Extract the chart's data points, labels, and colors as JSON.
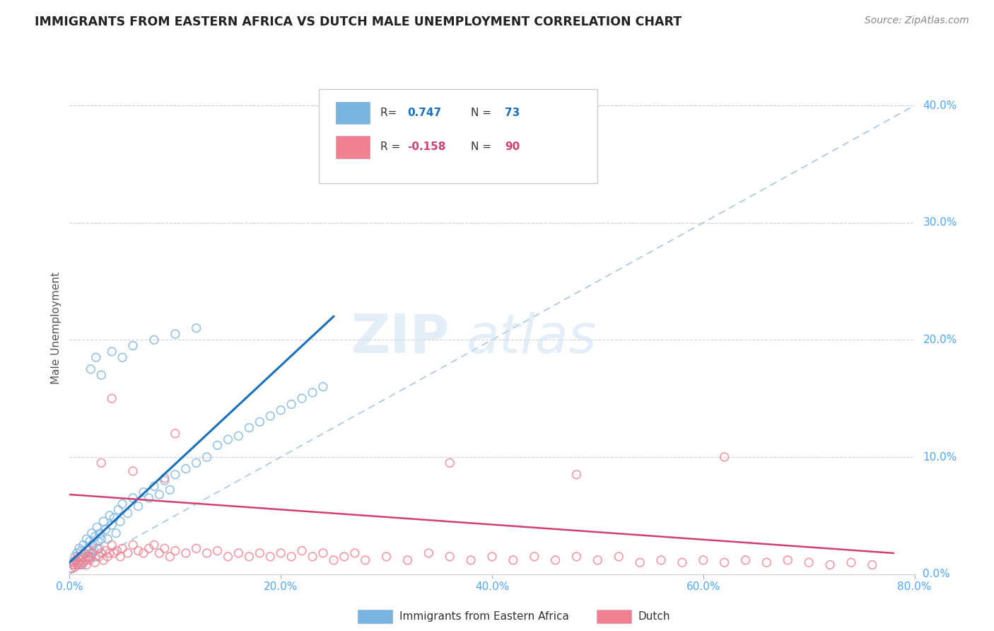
{
  "title": "IMMIGRANTS FROM EASTERN AFRICA VS DUTCH MALE UNEMPLOYMENT CORRELATION CHART",
  "source": "Source: ZipAtlas.com",
  "ylabel": "Male Unemployment",
  "xlim": [
    0,
    0.8
  ],
  "ylim": [
    0.0,
    0.42
  ],
  "yticks": [
    0.0,
    0.1,
    0.2,
    0.3,
    0.4
  ],
  "xticks": [
    0.0,
    0.2,
    0.4,
    0.6,
    0.8
  ],
  "legend_label1": "Immigrants from Eastern Africa",
  "legend_label2": "Dutch",
  "blue_scatter_color": "#7ab4e0",
  "pink_scatter_color": "#f08090",
  "blue_line_color": "#1a6fba",
  "pink_line_color": "#d04070",
  "dash_line_color": "#a0c0e0",
  "axis_color": "#4da6ff",
  "grid_color": "#cccccc",
  "title_color": "#222222",
  "blue_scatter": [
    [
      0.002,
      0.005
    ],
    [
      0.003,
      0.01
    ],
    [
      0.004,
      0.008
    ],
    [
      0.005,
      0.015
    ],
    [
      0.006,
      0.012
    ],
    [
      0.007,
      0.018
    ],
    [
      0.008,
      0.01
    ],
    [
      0.009,
      0.022
    ],
    [
      0.01,
      0.015
    ],
    [
      0.011,
      0.02
    ],
    [
      0.012,
      0.008
    ],
    [
      0.013,
      0.025
    ],
    [
      0.014,
      0.018
    ],
    [
      0.015,
      0.012
    ],
    [
      0.016,
      0.03
    ],
    [
      0.017,
      0.022
    ],
    [
      0.018,
      0.015
    ],
    [
      0.019,
      0.028
    ],
    [
      0.02,
      0.018
    ],
    [
      0.021,
      0.035
    ],
    [
      0.022,
      0.025
    ],
    [
      0.023,
      0.02
    ],
    [
      0.024,
      0.032
    ],
    [
      0.025,
      0.015
    ],
    [
      0.026,
      0.04
    ],
    [
      0.027,
      0.028
    ],
    [
      0.028,
      0.022
    ],
    [
      0.029,
      0.035
    ],
    [
      0.03,
      0.03
    ],
    [
      0.032,
      0.045
    ],
    [
      0.034,
      0.038
    ],
    [
      0.036,
      0.03
    ],
    [
      0.038,
      0.05
    ],
    [
      0.04,
      0.042
    ],
    [
      0.042,
      0.048
    ],
    [
      0.044,
      0.035
    ],
    [
      0.046,
      0.055
    ],
    [
      0.048,
      0.045
    ],
    [
      0.05,
      0.06
    ],
    [
      0.055,
      0.052
    ],
    [
      0.06,
      0.065
    ],
    [
      0.065,
      0.058
    ],
    [
      0.07,
      0.07
    ],
    [
      0.075,
      0.065
    ],
    [
      0.08,
      0.075
    ],
    [
      0.085,
      0.068
    ],
    [
      0.09,
      0.08
    ],
    [
      0.095,
      0.072
    ],
    [
      0.1,
      0.085
    ],
    [
      0.11,
      0.09
    ],
    [
      0.12,
      0.095
    ],
    [
      0.13,
      0.1
    ],
    [
      0.14,
      0.11
    ],
    [
      0.15,
      0.115
    ],
    [
      0.16,
      0.118
    ],
    [
      0.17,
      0.125
    ],
    [
      0.18,
      0.13
    ],
    [
      0.19,
      0.135
    ],
    [
      0.2,
      0.14
    ],
    [
      0.21,
      0.145
    ],
    [
      0.22,
      0.15
    ],
    [
      0.23,
      0.155
    ],
    [
      0.24,
      0.16
    ],
    [
      0.02,
      0.175
    ],
    [
      0.025,
      0.185
    ],
    [
      0.03,
      0.17
    ],
    [
      0.04,
      0.19
    ],
    [
      0.05,
      0.185
    ],
    [
      0.06,
      0.195
    ],
    [
      0.08,
      0.2
    ],
    [
      0.1,
      0.205
    ],
    [
      0.12,
      0.21
    ]
  ],
  "pink_scatter": [
    [
      0.002,
      0.005
    ],
    [
      0.003,
      0.008
    ],
    [
      0.004,
      0.01
    ],
    [
      0.005,
      0.006
    ],
    [
      0.006,
      0.012
    ],
    [
      0.007,
      0.008
    ],
    [
      0.008,
      0.015
    ],
    [
      0.009,
      0.01
    ],
    [
      0.01,
      0.008
    ],
    [
      0.011,
      0.012
    ],
    [
      0.012,
      0.015
    ],
    [
      0.013,
      0.01
    ],
    [
      0.014,
      0.018
    ],
    [
      0.015,
      0.012
    ],
    [
      0.016,
      0.008
    ],
    [
      0.017,
      0.015
    ],
    [
      0.018,
      0.02
    ],
    [
      0.019,
      0.012
    ],
    [
      0.02,
      0.015
    ],
    [
      0.022,
      0.018
    ],
    [
      0.024,
      0.01
    ],
    [
      0.026,
      0.022
    ],
    [
      0.028,
      0.015
    ],
    [
      0.03,
      0.018
    ],
    [
      0.032,
      0.012
    ],
    [
      0.034,
      0.02
    ],
    [
      0.036,
      0.015
    ],
    [
      0.038,
      0.018
    ],
    [
      0.04,
      0.025
    ],
    [
      0.042,
      0.018
    ],
    [
      0.045,
      0.02
    ],
    [
      0.048,
      0.015
    ],
    [
      0.05,
      0.022
    ],
    [
      0.055,
      0.018
    ],
    [
      0.06,
      0.025
    ],
    [
      0.065,
      0.02
    ],
    [
      0.07,
      0.018
    ],
    [
      0.075,
      0.022
    ],
    [
      0.08,
      0.025
    ],
    [
      0.085,
      0.018
    ],
    [
      0.09,
      0.022
    ],
    [
      0.095,
      0.015
    ],
    [
      0.1,
      0.02
    ],
    [
      0.11,
      0.018
    ],
    [
      0.12,
      0.022
    ],
    [
      0.13,
      0.018
    ],
    [
      0.14,
      0.02
    ],
    [
      0.15,
      0.015
    ],
    [
      0.16,
      0.018
    ],
    [
      0.17,
      0.015
    ],
    [
      0.18,
      0.018
    ],
    [
      0.19,
      0.015
    ],
    [
      0.2,
      0.018
    ],
    [
      0.21,
      0.015
    ],
    [
      0.22,
      0.02
    ],
    [
      0.23,
      0.015
    ],
    [
      0.24,
      0.018
    ],
    [
      0.25,
      0.012
    ],
    [
      0.26,
      0.015
    ],
    [
      0.27,
      0.018
    ],
    [
      0.28,
      0.012
    ],
    [
      0.3,
      0.015
    ],
    [
      0.32,
      0.012
    ],
    [
      0.34,
      0.018
    ],
    [
      0.36,
      0.015
    ],
    [
      0.38,
      0.012
    ],
    [
      0.4,
      0.015
    ],
    [
      0.42,
      0.012
    ],
    [
      0.44,
      0.015
    ],
    [
      0.46,
      0.012
    ],
    [
      0.48,
      0.015
    ],
    [
      0.5,
      0.012
    ],
    [
      0.52,
      0.015
    ],
    [
      0.54,
      0.01
    ],
    [
      0.56,
      0.012
    ],
    [
      0.58,
      0.01
    ],
    [
      0.6,
      0.012
    ],
    [
      0.62,
      0.01
    ],
    [
      0.64,
      0.012
    ],
    [
      0.66,
      0.01
    ],
    [
      0.68,
      0.012
    ],
    [
      0.7,
      0.01
    ],
    [
      0.72,
      0.008
    ],
    [
      0.74,
      0.01
    ],
    [
      0.76,
      0.008
    ],
    [
      0.03,
      0.095
    ],
    [
      0.06,
      0.088
    ],
    [
      0.09,
      0.082
    ],
    [
      0.04,
      0.15
    ],
    [
      0.1,
      0.12
    ],
    [
      0.36,
      0.095
    ],
    [
      0.48,
      0.085
    ],
    [
      0.62,
      0.1
    ]
  ]
}
